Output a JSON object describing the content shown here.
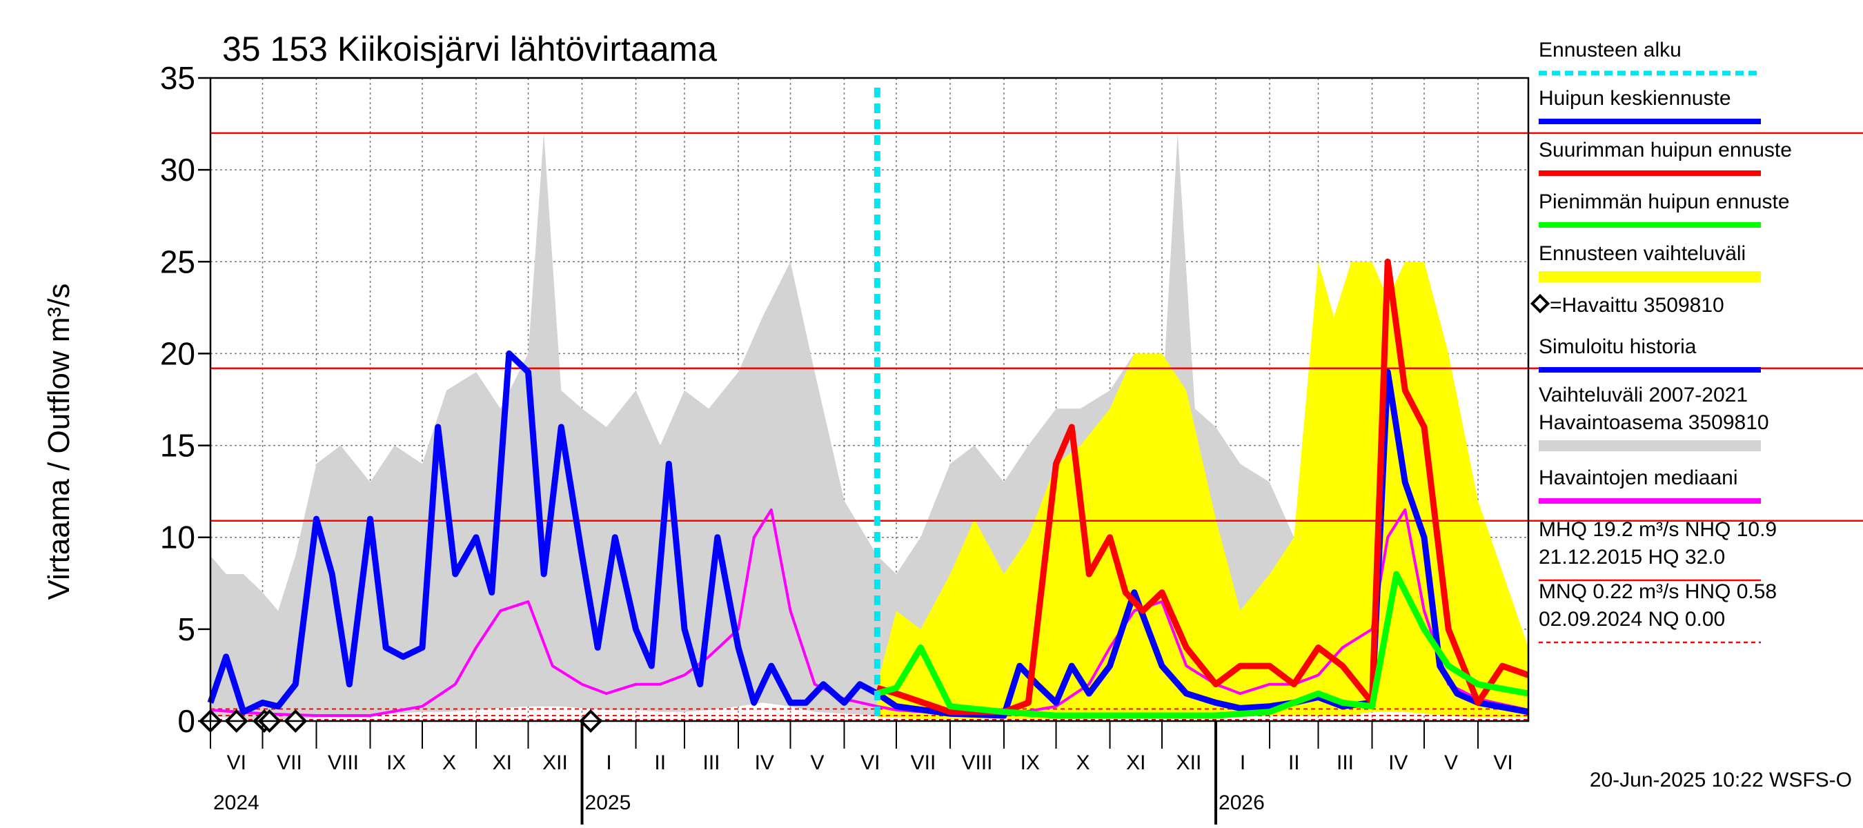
{
  "chart_data": {
    "type": "line",
    "title": "35 153 Kiikoisjärvi lähtövirtaama",
    "ylabel": "Virtaama / Outflow     m³/s",
    "ylim": [
      0,
      35
    ],
    "yticks": [
      0,
      5,
      10,
      15,
      20,
      25,
      30,
      35
    ],
    "xlim": [
      "2024-06-01",
      "2026-06-30"
    ],
    "grid": true,
    "month_labels": [
      "VI",
      "VII",
      "VIII",
      "IX",
      "X",
      "XI",
      "XII",
      "I",
      "II",
      "III",
      "IV",
      "V",
      "VI",
      "VII",
      "VIII",
      "IX",
      "X",
      "XI",
      "XII",
      "I",
      "II",
      "III",
      "IV",
      "V",
      "VI"
    ],
    "year_labels": [
      {
        "label": "2024",
        "date": "2024-06-01"
      },
      {
        "label": "2025",
        "date": "2025-01-01"
      },
      {
        "label": "2026",
        "date": "2026-01-01"
      }
    ],
    "forecast_start": "2025-06-20",
    "reference_lines": [
      {
        "name": "HQ",
        "value": 32.0
      },
      {
        "name": "MHQ",
        "value": 19.2
      },
      {
        "name": "NHQ",
        "value": 10.9
      }
    ],
    "min_reference_lines": [
      {
        "name": "HNQ",
        "value": 0.58
      },
      {
        "name": "MNQ",
        "value": 0.22
      },
      {
        "name": "NQ",
        "value": 0.0
      }
    ],
    "observations": {
      "name": "=Havaittu 3509810",
      "dates": [
        "2024-06-01",
        "2024-06-16",
        "2024-07-02",
        "2024-07-05",
        "2024-07-20",
        "2025-01-06"
      ],
      "values": [
        0,
        0,
        0,
        0,
        0,
        0
      ]
    },
    "series": [
      {
        "name": "Vaihteluväli 2007-2021 Havaintoasema 3509810",
        "kind": "band",
        "color": "#d3d3d3",
        "x": [
          "2024-06-01",
          "2024-06-10",
          "2024-06-20",
          "2024-07-01",
          "2024-07-10",
          "2024-07-20",
          "2024-08-01",
          "2024-08-15",
          "2024-09-01",
          "2024-09-15",
          "2024-10-01",
          "2024-10-15",
          "2024-11-01",
          "2024-11-15",
          "2024-12-01",
          "2024-12-10",
          "2024-12-20",
          "2025-01-01",
          "2025-01-15",
          "2025-02-01",
          "2025-02-15",
          "2025-03-01",
          "2025-03-15",
          "2025-04-01",
          "2025-04-15",
          "2025-05-01",
          "2025-05-15",
          "2025-06-01",
          "2025-06-20",
          "2025-07-01",
          "2025-07-15",
          "2025-08-01",
          "2025-08-15",
          "2025-09-01",
          "2025-09-15",
          "2025-10-01",
          "2025-10-15",
          "2025-11-01",
          "2025-11-15",
          "2025-12-01",
          "2025-12-10",
          "2025-12-20",
          "2026-01-01",
          "2026-01-15",
          "2026-02-01",
          "2026-02-15",
          "2026-03-01",
          "2026-03-15",
          "2026-04-01",
          "2026-04-15",
          "2026-05-01",
          "2026-05-15",
          "2026-06-01",
          "2026-06-30"
        ],
        "upper": [
          9,
          8,
          8,
          7,
          6,
          9,
          14,
          15,
          13,
          15,
          14,
          18,
          19,
          17,
          20,
          32,
          18,
          17,
          16,
          18,
          15,
          18,
          17,
          19,
          22,
          25,
          19,
          12,
          9,
          8,
          10,
          14,
          15,
          13,
          15,
          17,
          17,
          18,
          20,
          17,
          32,
          17,
          16,
          14,
          13,
          10,
          9,
          12,
          18,
          16,
          13,
          8,
          6,
          4
        ],
        "lower": [
          0.3,
          0.2,
          0.1,
          0.1,
          0.1,
          0.1,
          0.2,
          0.3,
          0.3,
          0.4,
          0.5,
          0.5,
          0.6,
          0.7,
          0.8,
          0.8,
          0.8,
          0.7,
          0.6,
          0.6,
          0.5,
          0.5,
          0.6,
          0.8,
          1.0,
          0.8,
          0.5,
          0.4,
          0.3,
          0.2,
          0.1,
          0.1,
          0.2,
          0.3,
          0.3,
          0.4,
          0.5,
          0.6,
          0.7,
          0.8,
          0.8,
          0.8,
          0.7,
          0.6,
          0.6,
          0.5,
          0.5,
          0.6,
          0.8,
          1.0,
          0.8,
          0.5,
          0.4,
          0.3
        ]
      },
      {
        "name": "Ennusteen vaihteluväli",
        "kind": "band",
        "color": "#ffff00",
        "x": [
          "2025-06-20",
          "2025-07-01",
          "2025-07-15",
          "2025-08-01",
          "2025-08-15",
          "2025-09-01",
          "2025-09-15",
          "2025-10-01",
          "2025-10-15",
          "2025-11-01",
          "2025-11-15",
          "2025-12-01",
          "2025-12-15",
          "2026-01-01",
          "2026-01-15",
          "2026-02-01",
          "2026-02-15",
          "2026-03-01",
          "2026-03-10",
          "2026-03-20",
          "2026-04-01",
          "2026-04-10",
          "2026-04-20",
          "2026-05-01",
          "2026-05-15",
          "2026-06-01",
          "2026-06-30"
        ],
        "upper": [
          2,
          6,
          5,
          8,
          11,
          8,
          10,
          14,
          15,
          17,
          20,
          20,
          18,
          11,
          6,
          8,
          10,
          25,
          22,
          25,
          25,
          23,
          25,
          25,
          20,
          12,
          4
        ],
        "lower": [
          0.2,
          0.2,
          0.1,
          0.1,
          0.1,
          0.1,
          0.1,
          0.1,
          0.1,
          0.2,
          0.2,
          0.3,
          0.3,
          0.3,
          0.3,
          0.3,
          0.3,
          0.3,
          0.3,
          0.3,
          0.5,
          0.5,
          0.5,
          0.4,
          0.3,
          0.2,
          0.2
        ]
      },
      {
        "name": "Havaintojen mediaani",
        "kind": "line",
        "color": "#ff00ff",
        "x": [
          "2024-06-01",
          "2024-07-01",
          "2024-08-01",
          "2024-09-01",
          "2024-10-01",
          "2024-10-20",
          "2024-11-01",
          "2024-11-15",
          "2024-12-01",
          "2024-12-15",
          "2025-01-01",
          "2025-01-15",
          "2025-02-01",
          "2025-02-15",
          "2025-03-01",
          "2025-03-15",
          "2025-04-01",
          "2025-04-10",
          "2025-04-20",
          "2025-05-01",
          "2025-05-15",
          "2025-06-01",
          "2025-06-20",
          "2025-07-01",
          "2025-08-01",
          "2025-09-01",
          "2025-10-01",
          "2025-10-20",
          "2025-11-01",
          "2025-11-15",
          "2025-12-01",
          "2025-12-15",
          "2026-01-01",
          "2026-01-15",
          "2026-02-01",
          "2026-02-15",
          "2026-03-01",
          "2026-03-15",
          "2026-04-01",
          "2026-04-10",
          "2026-04-20",
          "2026-05-01",
          "2026-05-15",
          "2026-06-01",
          "2026-06-30"
        ],
        "values": [
          0.6,
          0.4,
          0.3,
          0.3,
          0.8,
          2,
          4,
          6,
          6.5,
          3,
          2,
          1.5,
          2,
          2,
          2.5,
          3.5,
          5,
          10,
          11.5,
          6,
          2,
          1.2,
          0.8,
          0.6,
          0.4,
          0.3,
          0.8,
          2,
          4,
          6,
          6.5,
          3,
          2,
          1.5,
          2,
          2,
          2.5,
          4,
          5,
          10,
          11.5,
          6,
          2,
          1.2,
          0.6
        ]
      },
      {
        "name": "Simuloitu historia",
        "kind": "line",
        "color": "#0000ff",
        "x": [
          "2024-06-01",
          "2024-06-10",
          "2024-06-20",
          "2024-07-01",
          "2024-07-10",
          "2024-07-20",
          "2024-08-01",
          "2024-08-10",
          "2024-08-20",
          "2024-09-01",
          "2024-09-10",
          "2024-09-20",
          "2024-10-01",
          "2024-10-10",
          "2024-10-20",
          "2024-11-01",
          "2024-11-10",
          "2024-11-20",
          "2024-12-01",
          "2024-12-10",
          "2024-12-20",
          "2025-01-01",
          "2025-01-10",
          "2025-01-20",
          "2025-02-01",
          "2025-02-10",
          "2025-02-20",
          "2025-03-01",
          "2025-03-10",
          "2025-03-20",
          "2025-04-01",
          "2025-04-10",
          "2025-04-20",
          "2025-05-01",
          "2025-05-10",
          "2025-05-20",
          "2025-06-01",
          "2025-06-10",
          "2025-06-20"
        ],
        "values": [
          1,
          3.5,
          0.5,
          1,
          0.8,
          2,
          11,
          8,
          2,
          11,
          4,
          3.5,
          4,
          16,
          8,
          10,
          7,
          20,
          19,
          8,
          16,
          9,
          4,
          10,
          5,
          3,
          14,
          5,
          2,
          10,
          4,
          1,
          3,
          1,
          1,
          2,
          1,
          2,
          1.5
        ]
      },
      {
        "name": "Huipun keskiennuste",
        "kind": "line",
        "color": "#0000ff",
        "x": [
          "2025-06-20",
          "2025-07-01",
          "2025-08-01",
          "2025-09-01",
          "2025-09-10",
          "2025-09-20",
          "2025-10-01",
          "2025-10-10",
          "2025-10-20",
          "2025-11-01",
          "2025-11-15",
          "2025-12-01",
          "2025-12-15",
          "2026-01-01",
          "2026-01-15",
          "2026-02-01",
          "2026-02-15",
          "2026-03-01",
          "2026-03-15",
          "2026-04-01",
          "2026-04-10",
          "2026-04-20",
          "2026-05-01",
          "2026-05-10",
          "2026-05-20",
          "2026-06-01",
          "2026-06-30"
        ],
        "values": [
          1.5,
          0.8,
          0.4,
          0.3,
          3,
          2,
          1,
          3,
          1.5,
          3,
          7,
          3,
          1.5,
          1,
          0.7,
          0.8,
          1,
          1.3,
          0.8,
          1,
          19,
          13,
          10,
          3,
          1.5,
          1,
          0.5
        ]
      },
      {
        "name": "Suurimman huipun ennuste",
        "kind": "line",
        "color": "#ff0000",
        "x": [
          "2025-06-20",
          "2025-07-01",
          "2025-08-01",
          "2025-09-01",
          "2025-09-15",
          "2025-10-01",
          "2025-10-10",
          "2025-10-20",
          "2025-11-01",
          "2025-11-10",
          "2025-11-20",
          "2025-12-01",
          "2025-12-15",
          "2026-01-01",
          "2026-01-15",
          "2026-02-01",
          "2026-02-15",
          "2026-03-01",
          "2026-03-15",
          "2026-04-01",
          "2026-04-10",
          "2026-04-20",
          "2026-05-01",
          "2026-05-15",
          "2026-06-01",
          "2026-06-15",
          "2026-06-30"
        ],
        "values": [
          1.8,
          1.5,
          0.5,
          0.5,
          1,
          14,
          16,
          8,
          10,
          7,
          6,
          7,
          4,
          2,
          3,
          3,
          2,
          4,
          3,
          1,
          25,
          18,
          16,
          5,
          1,
          3,
          2.5
        ]
      },
      {
        "name": "Pienimmän huipun ennuste",
        "kind": "line",
        "color": "#00ff00",
        "x": [
          "2025-06-20",
          "2025-07-01",
          "2025-07-15",
          "2025-08-01",
          "2025-09-01",
          "2025-10-01",
          "2025-11-01",
          "2025-12-01",
          "2026-01-01",
          "2026-02-01",
          "2026-03-01",
          "2026-03-15",
          "2026-04-01",
          "2026-04-15",
          "2026-05-01",
          "2026-05-15",
          "2026-06-01",
          "2026-06-30"
        ],
        "values": [
          1.5,
          1.8,
          4,
          0.8,
          0.5,
          0.3,
          0.3,
          0.3,
          0.3,
          0.5,
          1.5,
          1,
          0.8,
          8,
          5,
          3,
          2,
          1.5
        ]
      }
    ],
    "legend": {
      "placement": "right",
      "entries": [
        {
          "label": "Ennusteen alku",
          "color": "#00e5ee",
          "style": "dashed"
        },
        {
          "label": "Huipun keskiennuste",
          "color": "#0000ff",
          "style": "solid"
        },
        {
          "label": "Suurimman huipun ennuste",
          "color": "#ff0000",
          "style": "solid"
        },
        {
          "label": "Pienimmän huipun ennuste",
          "color": "#00ff00",
          "style": "solid"
        },
        {
          "label": "Ennusteen vaihteluväli",
          "color": "#ffff00",
          "style": "band"
        },
        {
          "label": "=Havaittu 3509810",
          "color": "#000000",
          "style": "marker"
        },
        {
          "label": "Simuloitu historia",
          "color": "#0000ff",
          "style": "solid"
        },
        {
          "label": "Vaihteluväli 2007-2021",
          "label2": " Havaintoasema 3509810",
          "color": "#d3d3d3",
          "style": "band"
        },
        {
          "label": "Havaintojen mediaani",
          "color": "#ff00ff",
          "style": "solid"
        },
        {
          "label": "MHQ 19.2 m³/s NHQ 10.9",
          "label2": "21.12.2015 HQ 32.0",
          "color": "#ff0000",
          "style": "thin"
        },
        {
          "label": "MNQ 0.22 m³/s HNQ 0.58",
          "label2": "02.09.2024 NQ 0.00",
          "color": "#ff0000",
          "style": "thin-dashed"
        }
      ]
    },
    "footer": "20-Jun-2025 10:22 WSFS-O"
  }
}
